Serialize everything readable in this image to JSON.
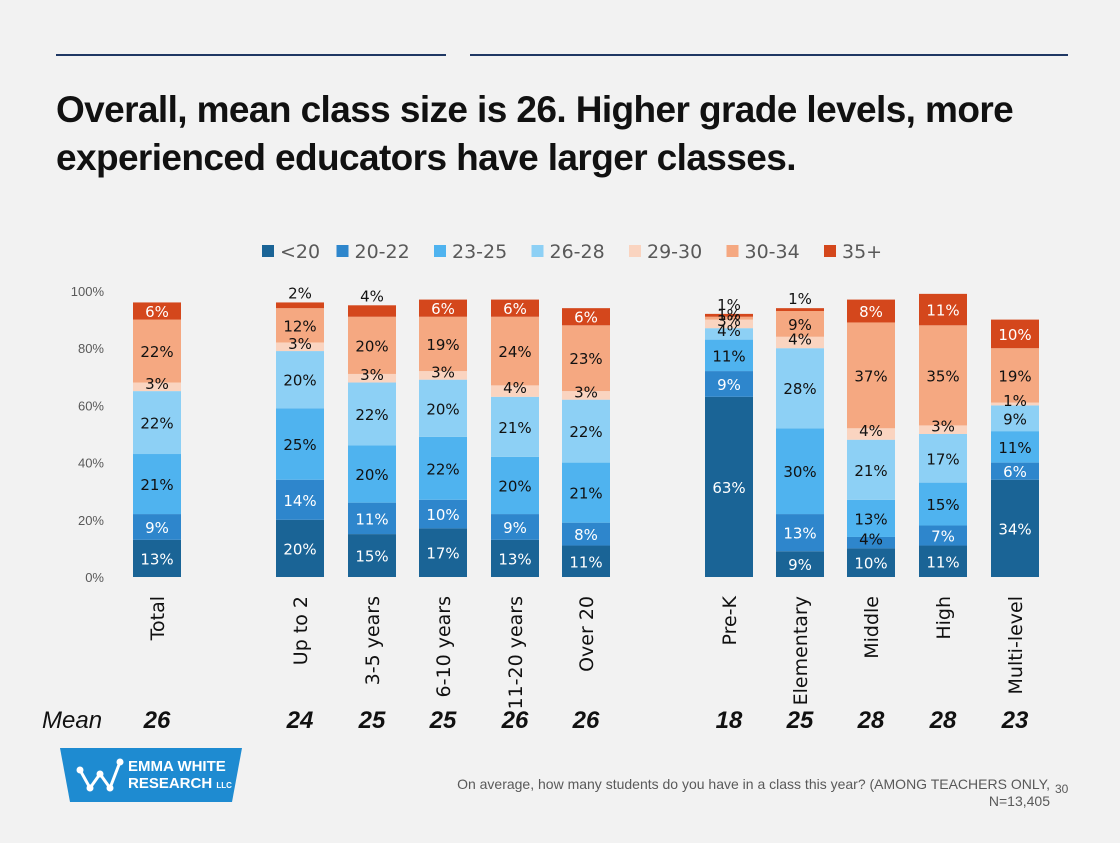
{
  "title": "Overall, mean class size is 26. Higher grade levels, more experienced educators have larger classes.",
  "mean_label": "Mean",
  "footnote": "On average, how many students do you have in a class this year? (AMONG TEACHERS ONLY, N=13,405",
  "page_number": "30",
  "logo": {
    "line1": "EMMA WHITE",
    "line2": "RESEARCH",
    "suffix": "LLC"
  },
  "colors": {
    "<20": "#1a6496",
    "20-22": "#2e86cc",
    "23-25": "#4fb3ef",
    "26-28": "#8dd0f5",
    "29-30": "#fad4c0",
    "30-34": "#f5a881",
    "35+": "#d4471c",
    "rule": "#1f3864",
    "logo": "#1e8bd1"
  },
  "chart_data": {
    "type": "bar",
    "stacked": true,
    "ylim": [
      0,
      100
    ],
    "yticks": [
      "0%",
      "20%",
      "40%",
      "60%",
      "80%",
      "100%"
    ],
    "legend": [
      "<20",
      "20-22",
      "23-25",
      "26-28",
      "29-30",
      "30-34",
      "35+"
    ],
    "legend_position": "top",
    "categories": [
      "Total",
      "Up to 2",
      "3-5 years",
      "6-10 years",
      "11-20 years",
      "Over 20",
      "Pre-K",
      "Elementary",
      "Middle",
      "High",
      "Multi-level"
    ],
    "series": [
      {
        "name": "<20",
        "values": [
          13,
          20,
          15,
          17,
          13,
          11,
          63,
          9,
          10,
          11,
          34
        ]
      },
      {
        "name": "20-22",
        "values": [
          9,
          14,
          11,
          10,
          9,
          8,
          9,
          13,
          4,
          7,
          6
        ]
      },
      {
        "name": "23-25",
        "values": [
          21,
          25,
          20,
          22,
          20,
          21,
          11,
          30,
          13,
          15,
          11
        ]
      },
      {
        "name": "26-28",
        "values": [
          22,
          20,
          22,
          20,
          21,
          22,
          4,
          28,
          21,
          17,
          9
        ]
      },
      {
        "name": "29-30",
        "values": [
          3,
          3,
          3,
          3,
          4,
          3,
          3,
          4,
          4,
          3,
          1
        ]
      },
      {
        "name": "30-34",
        "values": [
          22,
          12,
          20,
          19,
          24,
          23,
          1,
          9,
          37,
          35,
          19
        ]
      },
      {
        "name": "35+",
        "values": [
          6,
          2,
          4,
          6,
          6,
          6,
          1,
          1,
          8,
          11,
          10
        ]
      }
    ],
    "means": [
      "26",
      "24",
      "25",
      "25",
      "26",
      "26",
      "18",
      "25",
      "28",
      "28",
      "23"
    ]
  }
}
